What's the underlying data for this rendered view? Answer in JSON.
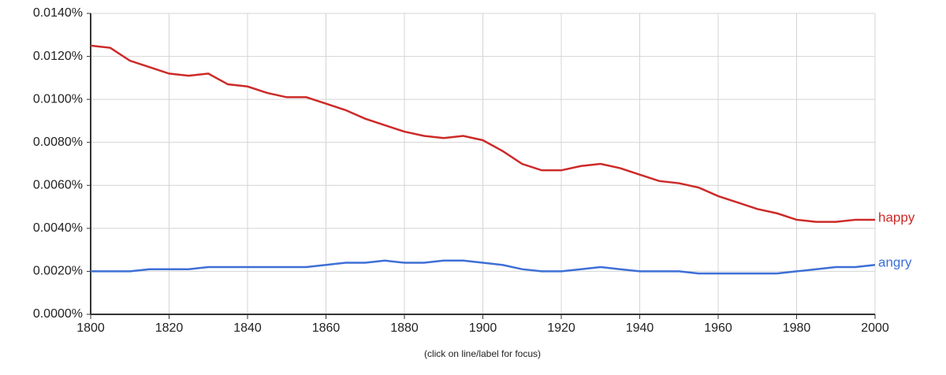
{
  "chart_data": {
    "type": "line",
    "note": "(click on line/label for focus)",
    "x": [
      1800,
      1805,
      1810,
      1815,
      1820,
      1825,
      1830,
      1835,
      1840,
      1845,
      1850,
      1855,
      1860,
      1865,
      1870,
      1875,
      1880,
      1885,
      1890,
      1895,
      1900,
      1905,
      1910,
      1915,
      1920,
      1925,
      1930,
      1935,
      1940,
      1945,
      1950,
      1955,
      1960,
      1965,
      1970,
      1975,
      1980,
      1985,
      1990,
      1995,
      2000
    ],
    "series": [
      {
        "name": "happy",
        "color": "#cc2a28",
        "values": [
          0.0125,
          0.0124,
          0.0118,
          0.0115,
          0.0112,
          0.0111,
          0.0112,
          0.0107,
          0.0106,
          0.0103,
          0.0101,
          0.0101,
          0.0098,
          0.0095,
          0.0091,
          0.0088,
          0.0085,
          0.0083,
          0.0082,
          0.0083,
          0.0081,
          0.0076,
          0.007,
          0.0067,
          0.0067,
          0.0069,
          0.007,
          0.0068,
          0.0065,
          0.0062,
          0.0061,
          0.0059,
          0.0055,
          0.0052,
          0.0049,
          0.0047,
          0.0044,
          0.0043,
          0.0043,
          0.0044,
          0.0044
        ]
      },
      {
        "name": "angry",
        "color": "#3e6fd6",
        "values": [
          0.002,
          0.002,
          0.002,
          0.0021,
          0.0021,
          0.0021,
          0.0022,
          0.0022,
          0.0022,
          0.0022,
          0.0022,
          0.0022,
          0.0023,
          0.0024,
          0.0024,
          0.0025,
          0.0024,
          0.0024,
          0.0025,
          0.0025,
          0.0024,
          0.0023,
          0.0021,
          0.002,
          0.002,
          0.0021,
          0.0022,
          0.0021,
          0.002,
          0.002,
          0.002,
          0.0019,
          0.0019,
          0.0019,
          0.0019,
          0.0019,
          0.002,
          0.0021,
          0.0022,
          0.0022,
          0.0023
        ]
      }
    ],
    "xlim": [
      1800,
      2000
    ],
    "xticks": [
      1800,
      1820,
      1840,
      1860,
      1880,
      1900,
      1920,
      1940,
      1960,
      1980,
      2000
    ],
    "ylim": [
      0,
      0.014
    ],
    "yticks": [
      {
        "value": 0,
        "label": "0.0000%"
      },
      {
        "value": 0.002,
        "label": "0.0020%"
      },
      {
        "value": 0.004,
        "label": "0.0040%"
      },
      {
        "value": 0.006,
        "label": "0.0060%"
      },
      {
        "value": 0.008,
        "label": "0.0080%"
      },
      {
        "value": 0.01,
        "label": "0.0100%"
      },
      {
        "value": 0.012,
        "label": "0.0120%"
      },
      {
        "value": 0.014,
        "label": "0.0140%"
      }
    ],
    "grid": true
  }
}
